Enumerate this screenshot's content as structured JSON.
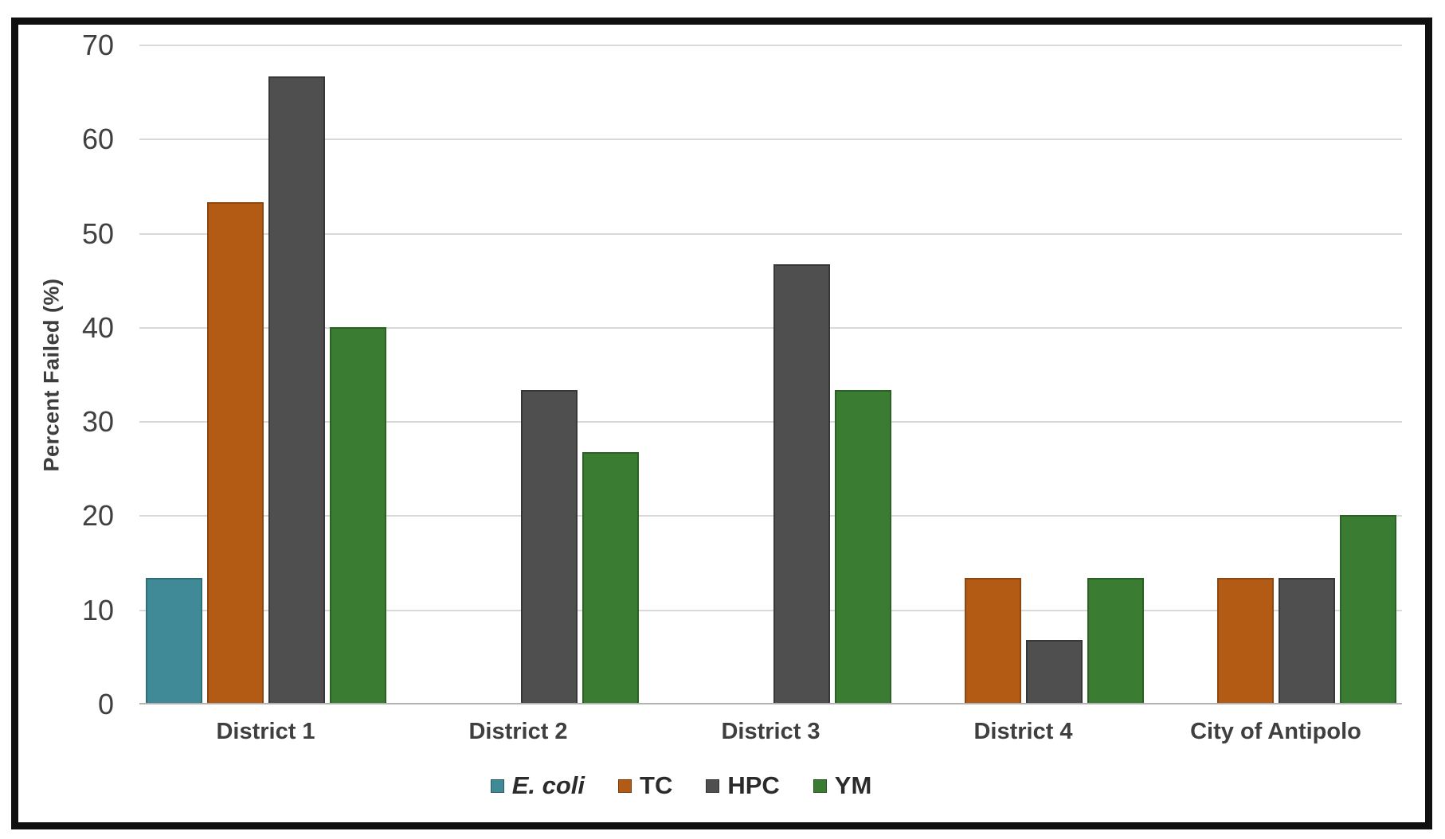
{
  "chart_data": {
    "type": "bar",
    "title": "",
    "xlabel": "",
    "ylabel": "Percent Failed (%)",
    "ylim": [
      0,
      70
    ],
    "yticks": [
      0,
      10,
      20,
      30,
      40,
      50,
      60,
      70
    ],
    "grid": "horizontal",
    "legend_position": "bottom",
    "categories": [
      "District 1",
      "District 2",
      "District 3",
      "District 4",
      "City of Antipolo"
    ],
    "series": [
      {
        "name": "E. coli",
        "italic": true,
        "color": "#3F8A96",
        "border_color": "#2E6E79",
        "values": [
          13.3,
          0,
          0,
          0,
          0
        ]
      },
      {
        "name": "TC",
        "italic": false,
        "color": "#B35A14",
        "border_color": "#8F4710",
        "values": [
          53.3,
          0,
          0,
          13.3,
          13.3
        ]
      },
      {
        "name": "HPC",
        "italic": false,
        "color": "#4F4F4F",
        "border_color": "#383838",
        "values": [
          66.7,
          33.3,
          46.7,
          6.7,
          13.3
        ]
      },
      {
        "name": "YM",
        "italic": false,
        "color": "#3A7D32",
        "border_color": "#2B6125",
        "values": [
          40,
          26.7,
          33.3,
          13.3,
          20
        ]
      }
    ]
  },
  "colors": {
    "frame_border": "#101010",
    "gridline": "#D9D9D9",
    "axis_line": "#B3B3B3",
    "tick_text": "#404040",
    "label_text": "#3F3F3F",
    "background": "#FFFFFF"
  }
}
